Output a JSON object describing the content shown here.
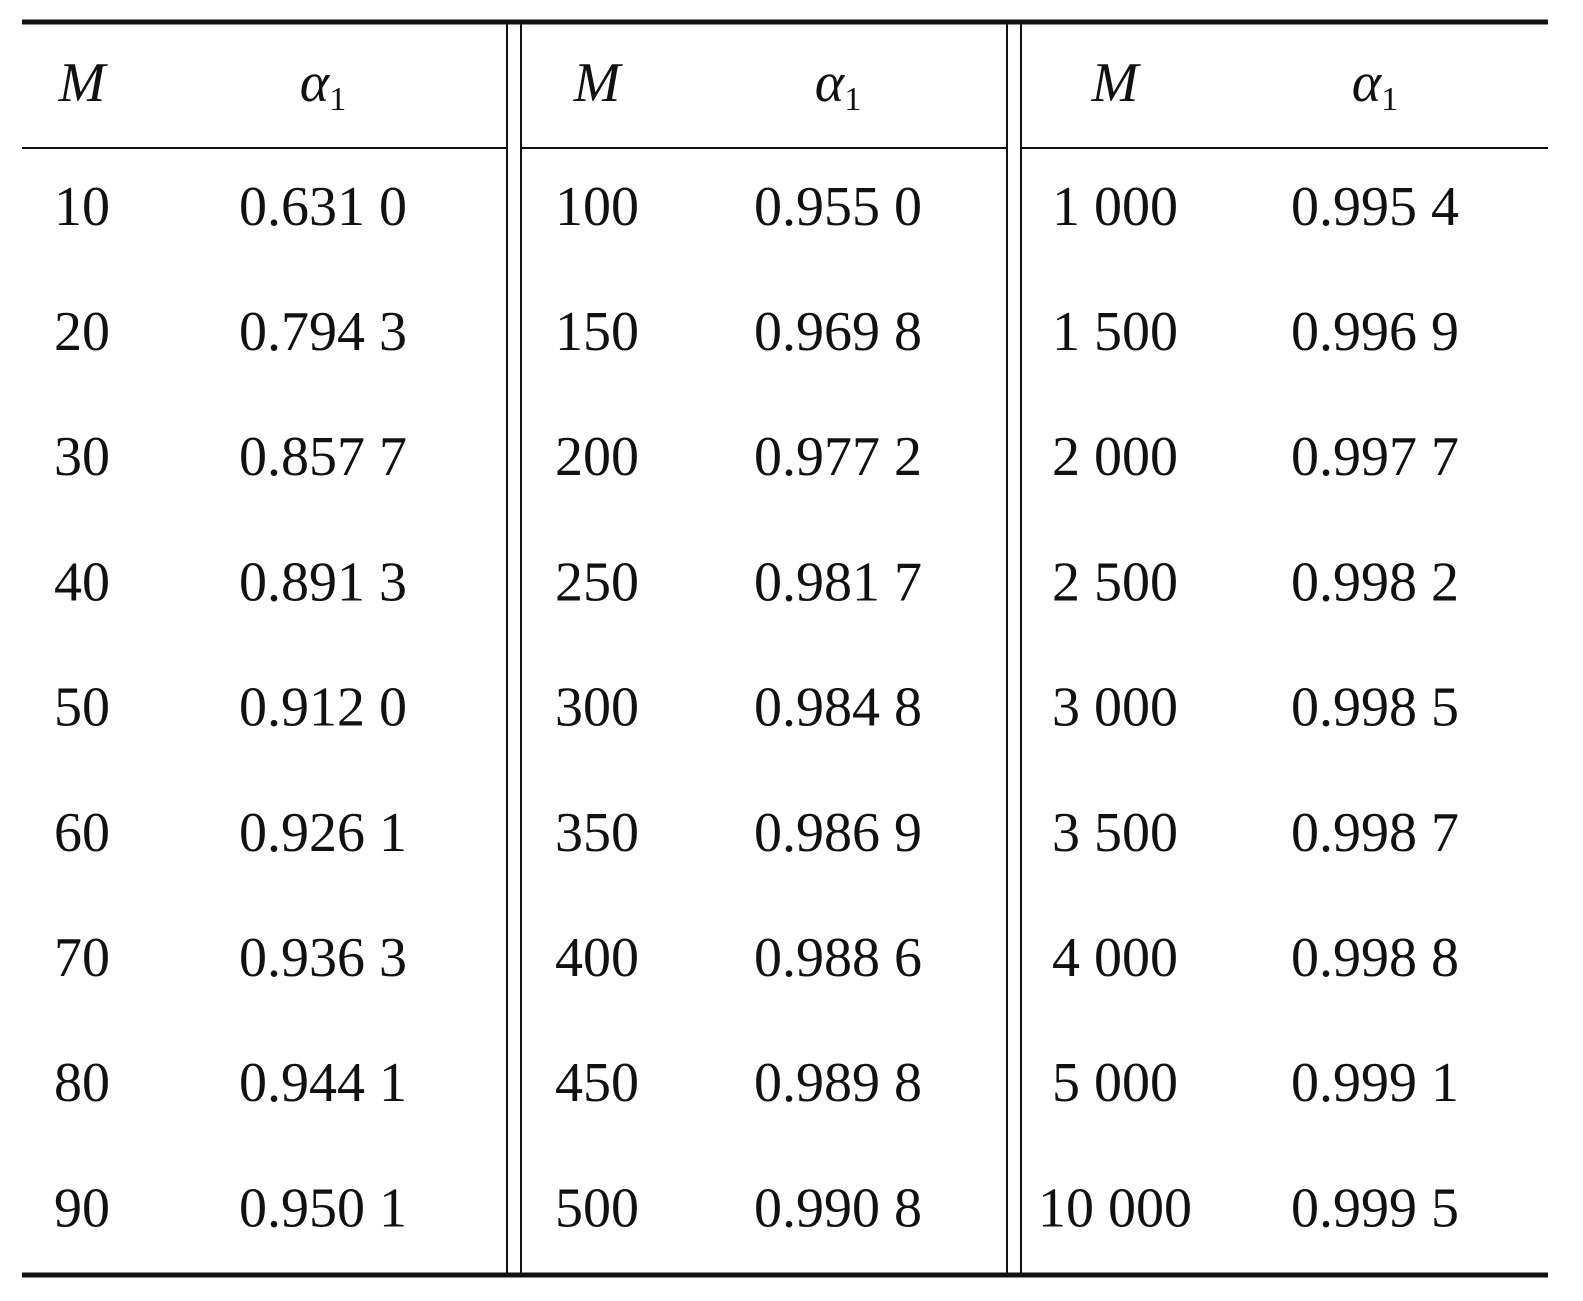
{
  "table": {
    "panels": [
      {
        "header": {
          "m": "M",
          "alpha": "α",
          "alpha_sub": "1"
        },
        "rows": [
          [
            "10",
            "0.631 0"
          ],
          [
            "20",
            "0.794 3"
          ],
          [
            "30",
            "0.857 7"
          ],
          [
            "40",
            "0.891 3"
          ],
          [
            "50",
            "0.912 0"
          ],
          [
            "60",
            "0.926 1"
          ],
          [
            "70",
            "0.936 3"
          ],
          [
            "80",
            "0.944 1"
          ],
          [
            "90",
            "0.950 1"
          ]
        ]
      },
      {
        "header": {
          "m": "M",
          "alpha": "α",
          "alpha_sub": "1"
        },
        "rows": [
          [
            "100",
            "0.955 0"
          ],
          [
            "150",
            "0.969 8"
          ],
          [
            "200",
            "0.977 2"
          ],
          [
            "250",
            "0.981 7"
          ],
          [
            "300",
            "0.984 8"
          ],
          [
            "350",
            "0.986 9"
          ],
          [
            "400",
            "0.988 6"
          ],
          [
            "450",
            "0.989 8"
          ],
          [
            "500",
            "0.990 8"
          ]
        ]
      },
      {
        "header": {
          "m": "M",
          "alpha": "α",
          "alpha_sub": "1"
        },
        "rows": [
          [
            "1 000",
            "0.995 4"
          ],
          [
            "1 500",
            "0.996 9"
          ],
          [
            "2 000",
            "0.997 7"
          ],
          [
            "2 500",
            "0.998 2"
          ],
          [
            "3 000",
            "0.998 5"
          ],
          [
            "3 500",
            "0.998 7"
          ],
          [
            "4 000",
            "0.998 8"
          ],
          [
            "5 000",
            "0.999 1"
          ],
          [
            "10 000",
            "0.999 5"
          ]
        ]
      }
    ]
  }
}
